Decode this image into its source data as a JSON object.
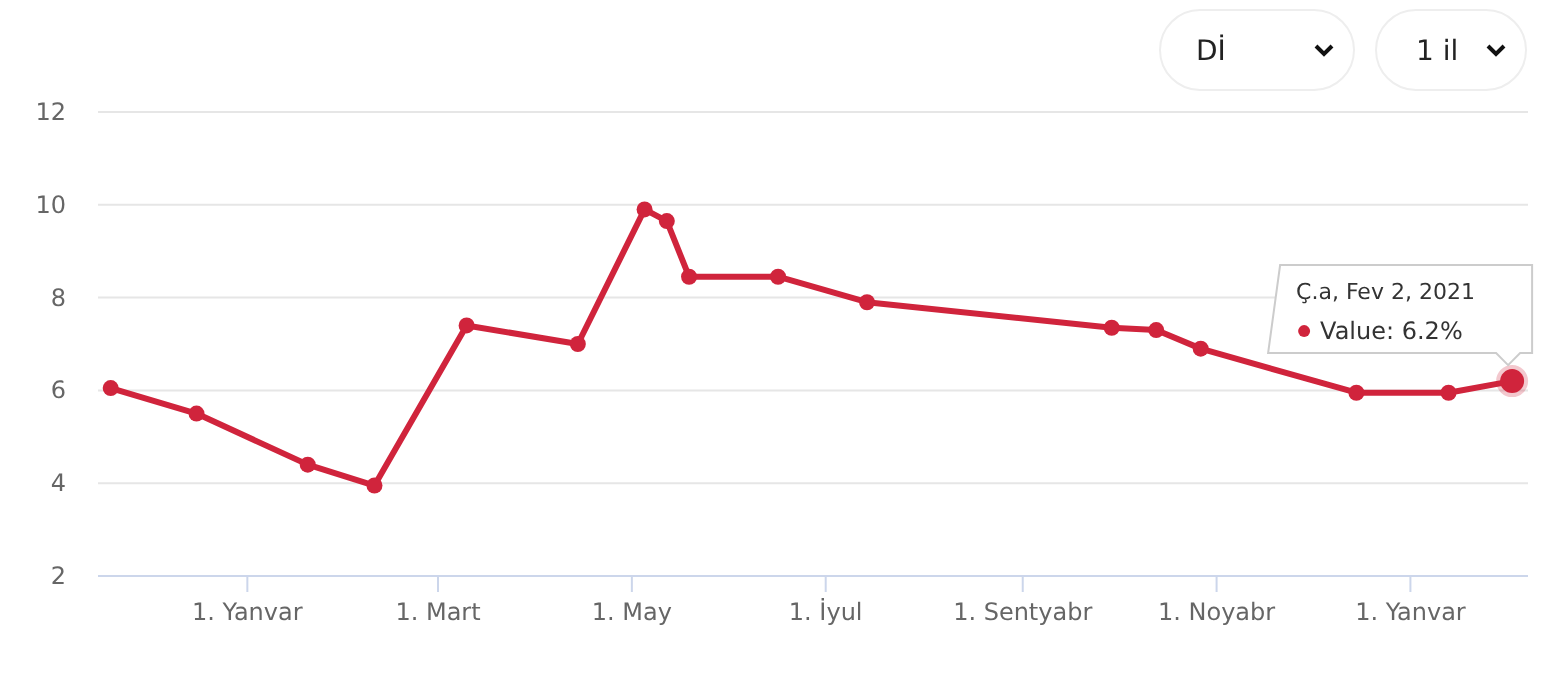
{
  "chart_data": {
    "type": "line",
    "x": [
      "2019-11-19",
      "2019-12-16",
      "2020-01-20",
      "2020-02-10",
      "2020-03-10",
      "2020-04-14",
      "2020-05-05",
      "2020-05-12",
      "2020-05-19",
      "2020-06-16",
      "2020-07-14",
      "2020-09-29",
      "2020-10-13",
      "2020-10-27",
      "2020-12-15",
      "2021-01-13",
      "2021-02-02"
    ],
    "series": [
      {
        "color": "#d0243c",
        "values": [
          6.05,
          5.5,
          4.4,
          3.95,
          7.4,
          7.0,
          9.9,
          9.65,
          8.45,
          8.45,
          7.9,
          7.35,
          7.3,
          6.9,
          5.95,
          5.95,
          6.2
        ]
      }
    ],
    "xlim": [
      "2019-11-15",
      "2021-02-07"
    ],
    "xticks": [
      {
        "value": "2020-01-01",
        "label": "1. Yanvar"
      },
      {
        "value": "2020-03-01",
        "label": "1. Mart"
      },
      {
        "value": "2020-05-01",
        "label": "1. May"
      },
      {
        "value": "2020-07-01",
        "label": "1. İyul"
      },
      {
        "value": "2020-09-01",
        "label": "1. Sentyabr"
      },
      {
        "value": "2020-11-01",
        "label": "1. Noyabr"
      },
      {
        "value": "2021-01-01",
        "label": "1. Yanvar"
      }
    ],
    "ylim": [
      2,
      12
    ],
    "yticks": [
      2,
      4,
      6,
      8,
      10,
      12
    ],
    "grid": "y",
    "marker": "circle",
    "line_style": "solid",
    "annotations": [
      {
        "text": "Ç.a, Fev 2, 2021\nValue: 6.2%",
        "x": "2021-02-02",
        "y": 6.2
      },
      "Dİ",
      "1 il"
    ]
  }
}
